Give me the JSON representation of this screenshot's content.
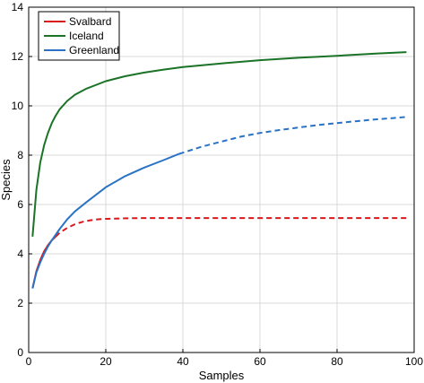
{
  "chart_data": {
    "type": "line",
    "title": "",
    "xlabel": "Samples",
    "ylabel": "Species",
    "xlim": [
      0,
      100
    ],
    "ylim": [
      0,
      14
    ],
    "xticks": [
      "0",
      "20",
      "40",
      "60",
      "80",
      "100"
    ],
    "yticks": [
      "0",
      "2",
      "4",
      "6",
      "8",
      "10",
      "12",
      "14"
    ],
    "grid": true,
    "legend_position": "top-left",
    "series": [
      {
        "name": "Svalbard",
        "color": "#d7191c",
        "interpolated": {
          "x": [
            1,
            2,
            3,
            4,
            5,
            6,
            7
          ],
          "y": [
            2.6,
            3.3,
            3.75,
            4.1,
            4.35,
            4.55,
            4.7
          ]
        },
        "extrapolated": {
          "x": [
            7,
            8,
            10,
            12,
            14,
            16,
            18,
            20,
            25,
            30,
            40,
            60,
            80,
            98
          ],
          "y": [
            4.7,
            4.85,
            5.05,
            5.2,
            5.3,
            5.36,
            5.4,
            5.42,
            5.44,
            5.45,
            5.45,
            5.45,
            5.45,
            5.45
          ]
        }
      },
      {
        "name": "Iceland",
        "color": "#1a7326",
        "interpolated": {
          "x": [
            1,
            2,
            3,
            4,
            5,
            6,
            7,
            8,
            10,
            12,
            15,
            20,
            25,
            30,
            35,
            40,
            50,
            60,
            70,
            80,
            90,
            98
          ],
          "y": [
            4.7,
            6.6,
            7.7,
            8.4,
            8.9,
            9.3,
            9.6,
            9.85,
            10.2,
            10.45,
            10.7,
            11.0,
            11.2,
            11.35,
            11.47,
            11.57,
            11.72,
            11.85,
            11.95,
            12.03,
            12.12,
            12.18
          ]
        }
      },
      {
        "name": "Greenland",
        "color": "#2a73c4",
        "interpolated": {
          "x": [
            1,
            2,
            3,
            4,
            5,
            6,
            8,
            10,
            12,
            15,
            20,
            25,
            30,
            35,
            39
          ],
          "y": [
            2.6,
            3.25,
            3.65,
            4.0,
            4.3,
            4.55,
            5.0,
            5.4,
            5.72,
            6.1,
            6.7,
            7.15,
            7.5,
            7.8,
            8.05
          ]
        },
        "extrapolated": {
          "x": [
            39,
            45,
            50,
            55,
            60,
            65,
            70,
            75,
            80,
            85,
            90,
            95,
            98
          ],
          "y": [
            8.05,
            8.35,
            8.55,
            8.75,
            8.9,
            9.02,
            9.12,
            9.22,
            9.3,
            9.38,
            9.45,
            9.51,
            9.55
          ]
        }
      }
    ]
  }
}
